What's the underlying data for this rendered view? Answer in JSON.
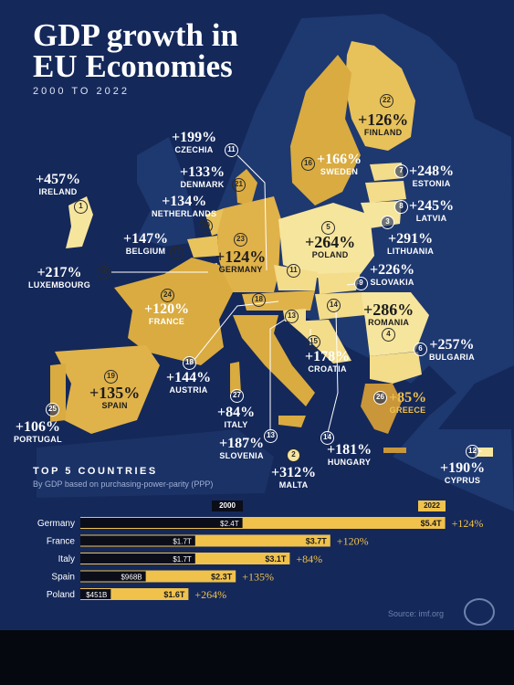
{
  "title": "GDP growth in EU Economies",
  "subtitle": "2000 TO 2022",
  "countries": [
    {
      "rank": "1",
      "name": "IRELAND",
      "growth": "+457%"
    },
    {
      "rank": "2",
      "name": "MALTA",
      "growth": "+312%"
    },
    {
      "rank": "3",
      "name": "LITHUANIA",
      "growth": "+291%"
    },
    {
      "rank": "4",
      "name": "ROMANIA",
      "growth": "+286%"
    },
    {
      "rank": "5",
      "name": "POLAND",
      "growth": "+264%"
    },
    {
      "rank": "6",
      "name": "BULGARIA",
      "growth": "+257%"
    },
    {
      "rank": "7",
      "name": "ESTONIA",
      "growth": "+248%"
    },
    {
      "rank": "8",
      "name": "LATVIA",
      "growth": "+245%"
    },
    {
      "rank": "9",
      "name": "SLOVAKIA",
      "growth": "+226%"
    },
    {
      "rank": "10",
      "name": "LUXEMBOURG",
      "growth": "+217%"
    },
    {
      "rank": "11",
      "name": "CZECHIA",
      "growth": "+199%"
    },
    {
      "rank": "12",
      "name": "CYPRUS",
      "growth": "+190%"
    },
    {
      "rank": "13",
      "name": "SLOVENIA",
      "growth": "+187%"
    },
    {
      "rank": "14",
      "name": "HUNGARY",
      "growth": "+181%"
    },
    {
      "rank": "15",
      "name": "CROATIA",
      "growth": "+178%"
    },
    {
      "rank": "16",
      "name": "SWEDEN",
      "growth": "+166%"
    },
    {
      "rank": "17",
      "name": "BELGIUM",
      "growth": "+147%"
    },
    {
      "rank": "18",
      "name": "AUSTRIA",
      "growth": "+144%"
    },
    {
      "rank": "19",
      "name": "SPAIN",
      "growth": "+135%"
    },
    {
      "rank": "20",
      "name": "NETHERLANDS",
      "growth": "+134%"
    },
    {
      "rank": "21",
      "name": "DENMARK",
      "growth": "+133%"
    },
    {
      "rank": "22",
      "name": "FINLAND",
      "growth": "+126%"
    },
    {
      "rank": "23",
      "name": "GERMANY",
      "growth": "+124%"
    },
    {
      "rank": "24",
      "name": "FRANCE",
      "growth": "+120%"
    },
    {
      "rank": "25",
      "name": "PORTUGAL",
      "growth": "+106%"
    },
    {
      "rank": "26",
      "name": "GREECE",
      "growth": "+85%"
    },
    {
      "rank": "27",
      "name": "ITALY",
      "growth": "+84%"
    }
  ],
  "top5": {
    "title": "TOP 5 COUNTRIES",
    "subtitle": "By GDP based on purchasing-power-parity (PPP)",
    "year_start": "2000",
    "year_end": "2022"
  },
  "chart_data": {
    "type": "bar",
    "title": "TOP 5 COUNTRIES",
    "subtitle": "By GDP based on purchasing-power-parity (PPP)",
    "categories": [
      "Germany",
      "France",
      "Italy",
      "Spain",
      "Poland"
    ],
    "series": [
      {
        "name": "2000",
        "values": [
          2.4,
          1.7,
          1.7,
          0.968,
          0.451
        ],
        "labels": [
          "$2.4T",
          "$1.7T",
          "$1.7T",
          "$968B",
          "$451B"
        ]
      },
      {
        "name": "2022",
        "values": [
          5.4,
          3.7,
          3.1,
          2.3,
          1.6
        ],
        "labels": [
          "$5.4T",
          "$3.7T",
          "$3.1T",
          "$2.3T",
          "$1.6T"
        ]
      }
    ],
    "growth_labels": [
      "+124%",
      "+120%",
      "+84%",
      "+135%",
      "+264%"
    ],
    "colors": {
      "bar_2000": "#0b0d18",
      "bar_2022": "#f0c24c",
      "growth_text": "#f0c24c",
      "category_text": "#ffffff"
    }
  },
  "source": "Source: imf.org",
  "colors": {
    "background": "#14285a",
    "land": "#1f3a72",
    "gold_dark": "#d8a63a",
    "gold_mid": "#e9c45c",
    "gold_light": "#f6e59d"
  }
}
